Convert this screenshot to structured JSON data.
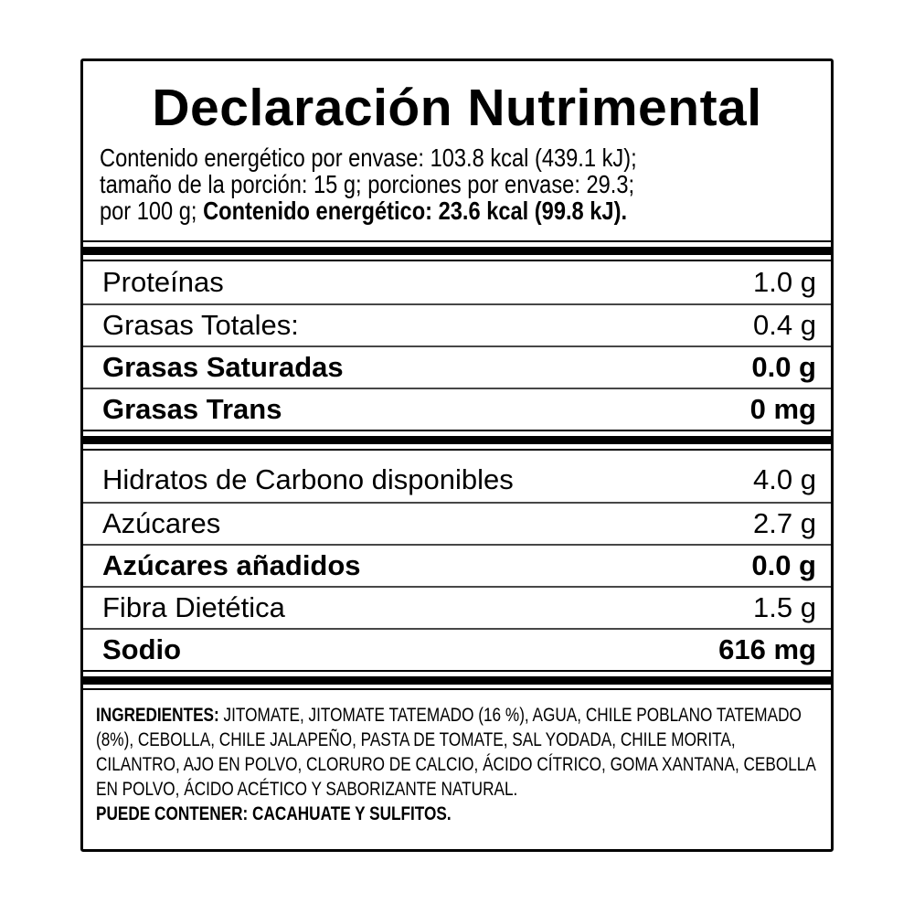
{
  "title": "Declaración Nutrimental",
  "energy": {
    "line1": "Contenido energético por envase: 103.8 kcal (439.1 kJ);",
    "line2": "tamaño de la porción: 15 g; porciones por envase: 29.3;",
    "line3_prefix": "por 100 g; ",
    "line3_bold": "Contenido energético: 23.6 kcal (99.8 kJ)."
  },
  "sections": [
    {
      "rows": [
        {
          "name": "Proteínas",
          "value": "1.0 g",
          "bold": false
        },
        {
          "name": "Grasas Totales:",
          "value": "0.4 g",
          "bold": false
        },
        {
          "name": "Grasas Saturadas",
          "value": "0.0 g",
          "bold": true
        },
        {
          "name": "Grasas Trans",
          "value": "0 mg",
          "bold": true
        }
      ]
    },
    {
      "rows": [
        {
          "name": "Hidratos de Carbono disponibles",
          "value": "4.0 g",
          "bold": false
        },
        {
          "name": "Azúcares",
          "value": "2.7 g",
          "bold": false
        },
        {
          "name": "Azúcares añadidos",
          "value": "0.0 g",
          "bold": true
        },
        {
          "name": "Fibra Dietética",
          "value": "1.5 g",
          "bold": false
        },
        {
          "name": "Sodio",
          "value": "616 mg",
          "bold": true
        }
      ]
    }
  ],
  "ingredients": {
    "heading": "INGREDIENTES:",
    "list": "JITOMATE, JITOMATE TATEMADO (16 %), AGUA, CHILE POBLANO TATEMADO (8%), CEBOLLA, CHILE JALAPEÑO, PASTA DE TOMATE, SAL YODADA, CHILE MORITA, CILANTRO, AJO EN POLVO, CLORURO DE CALCIO, ÁCIDO CÍTRICO, GOMA XANTANA, CEBOLLA EN POLVO, ÁCIDO ACÉTICO Y SABORIZANTE NATURAL.",
    "may_contain": "PUEDE CONTENER: CACAHUATE Y SULFITOS."
  },
  "colors": {
    "text": "#000000",
    "divider": "#474747",
    "section_bar": "#000000",
    "background": "#ffffff"
  }
}
